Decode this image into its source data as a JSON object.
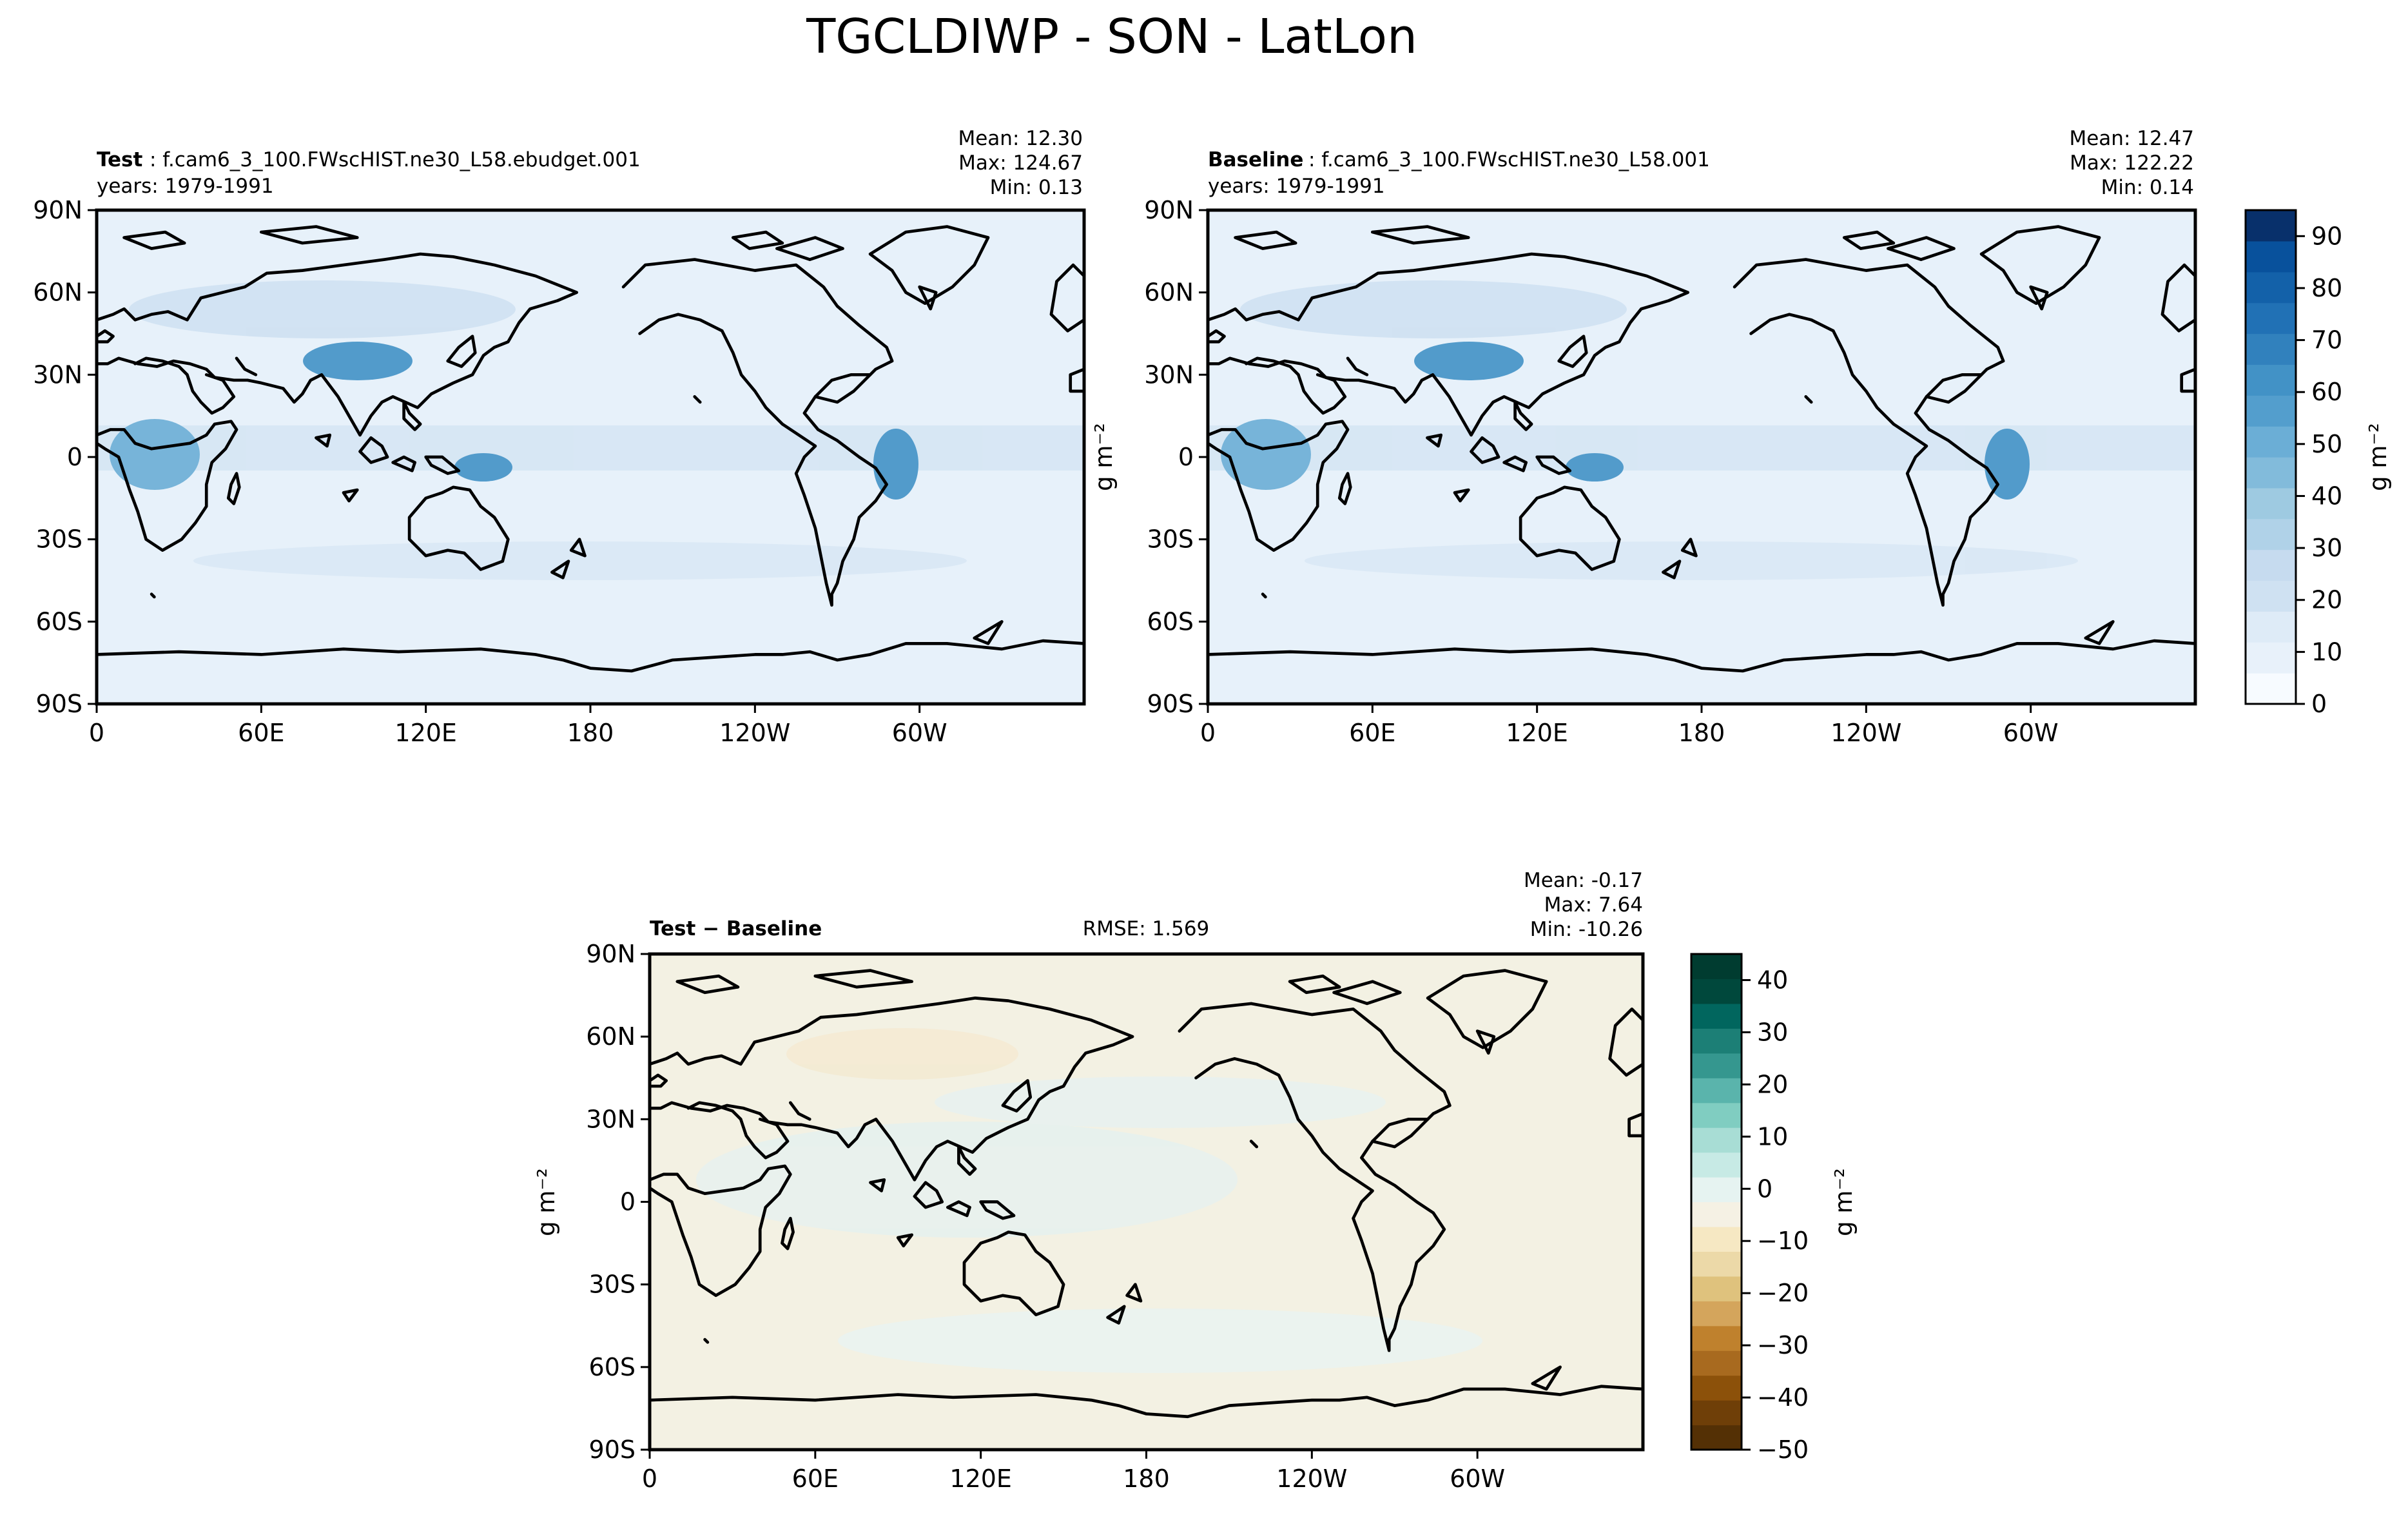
{
  "suptitle": "TGCLDIWP - SON - LatLon",
  "colors": {
    "frame": "#000000",
    "abs_cmap": [
      "#f7fbff",
      "#e8f1fa",
      "#deebf7",
      "#cfe1f2",
      "#c6dbef",
      "#b0d2e8",
      "#9ecae1",
      "#82bbdb",
      "#6baed6",
      "#539ecd",
      "#4292c6",
      "#3181bd",
      "#2171b5",
      "#1361a9",
      "#08519c",
      "#08306b"
    ],
    "diff_cmap": [
      "#543005",
      "#6f3f08",
      "#8c510a",
      "#a86a1f",
      "#bf812d",
      "#d4a55c",
      "#dfc27d",
      "#ecd9a8",
      "#f6e8c3",
      "#f5f1e4",
      "#e6f3f1",
      "#c7eae5",
      "#a8ddd5",
      "#80cdc1",
      "#5ab4ac",
      "#35978f",
      "#1c7f76",
      "#01665e",
      "#00483c",
      "#003c30"
    ],
    "test_bg": "#e7f1fa",
    "diff_bg": "#f3f1e3"
  },
  "chart_data": [
    {
      "type": "heatmap",
      "panel": "test",
      "title_bold": "Test",
      "title_rest": ": f.cam6_3_100.FWscHIST.ne30_L58.ebudget.001",
      "years": "years: 1979-1991",
      "stats": [
        "Mean: 12.30",
        "Max: 124.67",
        "Min:  0.13"
      ],
      "xticks": [
        "0",
        "60E",
        "120E",
        "180",
        "120W",
        "60W"
      ],
      "yticks": [
        "90N",
        "60N",
        "30N",
        "0",
        "30S",
        "60S",
        "90S"
      ],
      "xlim": [
        0,
        360
      ],
      "ylim": [
        -90,
        90
      ],
      "ylabel": "",
      "grid": false
    },
    {
      "type": "heatmap",
      "panel": "baseline",
      "title_bold": "Baseline",
      "title_rest": ": f.cam6_3_100.FWscHIST.ne30_L58.001",
      "years": "years: 1979-1991",
      "stats": [
        "Mean: 12.47",
        "Max: 122.22",
        "Min:  0.14"
      ],
      "xticks": [
        "0",
        "60E",
        "120E",
        "180",
        "120W",
        "60W"
      ],
      "yticks": [
        "90N",
        "60N",
        "30N",
        "0",
        "30S",
        "60S",
        "90S"
      ],
      "xlim": [
        0,
        360
      ],
      "ylim": [
        -90,
        90
      ],
      "ylabel": "g m⁻²",
      "colorbar": {
        "ticks": [
          "0",
          "10",
          "20",
          "30",
          "40",
          "50",
          "60",
          "70",
          "80",
          "90"
        ],
        "range": [
          0,
          95
        ],
        "label": "g m⁻²"
      },
      "grid": false
    },
    {
      "type": "heatmap",
      "panel": "diff",
      "title_bold": "Test − Baseline",
      "rmse": "RMSE: 1.569",
      "stats": [
        "Mean: -0.17",
        "Max:  7.64",
        "Min: -10.26"
      ],
      "xticks": [
        "0",
        "60E",
        "120E",
        "180",
        "120W",
        "60W"
      ],
      "yticks": [
        "90N",
        "60N",
        "30N",
        "0",
        "30S",
        "60S",
        "90S"
      ],
      "xlim": [
        0,
        360
      ],
      "ylim": [
        -90,
        90
      ],
      "ylabel": "g m⁻²",
      "colorbar": {
        "ticks": [
          "40",
          "30",
          "20",
          "10",
          "0",
          "−10",
          "−20",
          "−30",
          "−40",
          "−50"
        ],
        "range": [
          -50,
          45
        ],
        "label": "g m⁻²"
      },
      "grid": false
    }
  ]
}
